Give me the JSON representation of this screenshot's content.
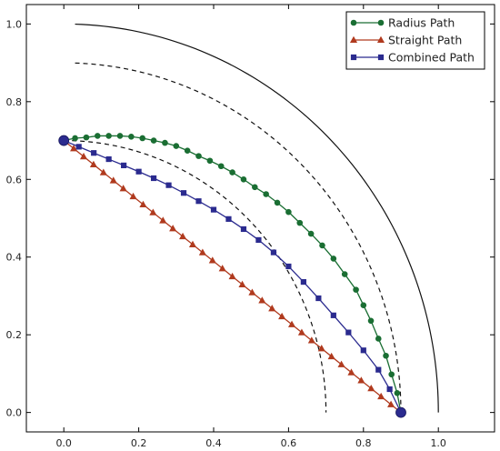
{
  "chart_data": {
    "type": "line",
    "title": "",
    "xlabel": "",
    "ylabel": "",
    "xlim": [
      -0.1,
      1.15
    ],
    "ylim": [
      -0.05,
      1.05
    ],
    "grid": false,
    "legend_position": "top-right",
    "x_ticks": [
      "0.0",
      "0.2",
      "0.4",
      "0.6",
      "0.8",
      "1.0"
    ],
    "y_ticks": [
      "0.0",
      "0.2",
      "0.4",
      "0.6",
      "0.8",
      "1.0"
    ],
    "guides": [
      {
        "style": "solid",
        "radius": 1.0,
        "from": [
          0.03,
          1.0
        ],
        "to": [
          1.0,
          0.0
        ]
      },
      {
        "style": "dashed",
        "radius": 0.9,
        "from": [
          0.03,
          0.9
        ],
        "to": [
          0.9,
          0.0
        ]
      },
      {
        "style": "dashed",
        "radius": 0.7,
        "from": [
          0.0,
          0.7
        ],
        "to": [
          0.7,
          0.0
        ]
      }
    ],
    "endpoints": {
      "color": "#2b2b8f",
      "points": [
        [
          0.0,
          0.7
        ],
        [
          0.9,
          0.0
        ]
      ]
    },
    "series": [
      {
        "name": "Radius Path",
        "color": "#1a6e33",
        "marker": "circle",
        "points": [
          [
            0.0,
            0.7
          ],
          [
            0.03,
            0.706
          ],
          [
            0.06,
            0.708
          ],
          [
            0.09,
            0.712
          ],
          [
            0.12,
            0.712
          ],
          [
            0.15,
            0.712
          ],
          [
            0.18,
            0.71
          ],
          [
            0.21,
            0.706
          ],
          [
            0.24,
            0.7
          ],
          [
            0.27,
            0.694
          ],
          [
            0.3,
            0.686
          ],
          [
            0.33,
            0.674
          ],
          [
            0.36,
            0.66
          ],
          [
            0.39,
            0.648
          ],
          [
            0.42,
            0.634
          ],
          [
            0.45,
            0.618
          ],
          [
            0.48,
            0.6
          ],
          [
            0.51,
            0.58
          ],
          [
            0.54,
            0.562
          ],
          [
            0.57,
            0.54
          ],
          [
            0.6,
            0.516
          ],
          [
            0.63,
            0.488
          ],
          [
            0.66,
            0.46
          ],
          [
            0.69,
            0.43
          ],
          [
            0.72,
            0.396
          ],
          [
            0.75,
            0.356
          ],
          [
            0.78,
            0.316
          ],
          [
            0.8,
            0.276
          ],
          [
            0.82,
            0.236
          ],
          [
            0.84,
            0.19
          ],
          [
            0.86,
            0.146
          ],
          [
            0.875,
            0.098
          ],
          [
            0.89,
            0.05
          ],
          [
            0.9,
            0.0
          ]
        ]
      },
      {
        "name": "Straight Path",
        "color": "#b03a1e",
        "marker": "triangle",
        "points": [
          [
            0.0,
            0.7
          ],
          [
            0.9,
            0.0
          ]
        ],
        "marker_count": 35
      },
      {
        "name": "Combined Path",
        "color": "#2b2b8f",
        "marker": "square",
        "points": [
          [
            0.0,
            0.7
          ],
          [
            0.04,
            0.684
          ],
          [
            0.08,
            0.668
          ],
          [
            0.12,
            0.652
          ],
          [
            0.16,
            0.636
          ],
          [
            0.2,
            0.62
          ],
          [
            0.24,
            0.603
          ],
          [
            0.28,
            0.585
          ],
          [
            0.32,
            0.565
          ],
          [
            0.36,
            0.544
          ],
          [
            0.4,
            0.522
          ],
          [
            0.44,
            0.498
          ],
          [
            0.48,
            0.472
          ],
          [
            0.52,
            0.444
          ],
          [
            0.56,
            0.412
          ],
          [
            0.6,
            0.376
          ],
          [
            0.64,
            0.336
          ],
          [
            0.68,
            0.294
          ],
          [
            0.72,
            0.25
          ],
          [
            0.76,
            0.206
          ],
          [
            0.8,
            0.16
          ],
          [
            0.84,
            0.11
          ],
          [
            0.87,
            0.06
          ],
          [
            0.9,
            0.0
          ]
        ]
      }
    ]
  }
}
